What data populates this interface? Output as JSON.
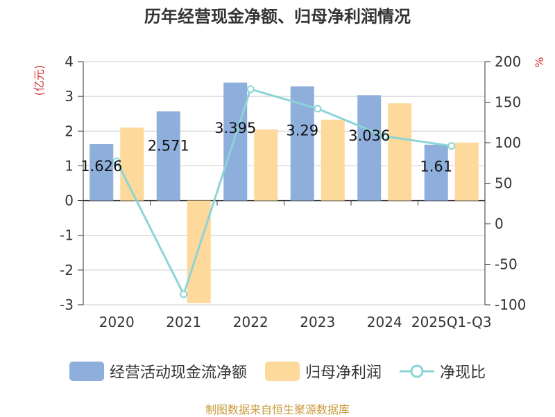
{
  "chart_data": {
    "type": "bar",
    "title": "历年经营现金净额、归母净利润情况",
    "categories": [
      "2020",
      "2021",
      "2022",
      "2023",
      "2024",
      "2025Q1-Q3"
    ],
    "y_left": {
      "unit": "(亿元)",
      "range": [
        -3,
        4
      ],
      "ticks": [
        "4",
        "3",
        "2",
        "1",
        "0",
        "-1",
        "-2",
        "-3"
      ]
    },
    "y_right": {
      "unit": "%",
      "range": [
        -100,
        200
      ],
      "ticks": [
        "200",
        "150",
        "100",
        "50",
        "0",
        "-50",
        "-100"
      ]
    },
    "grid": true,
    "legend_position": "bottom",
    "series": [
      {
        "name": "经营活动现金流净额",
        "type": "bar",
        "axis": "left",
        "color": "#8eaedc",
        "values": [
          1.626,
          2.571,
          3.395,
          3.29,
          3.036,
          1.61
        ],
        "labels": [
          "1.626",
          "2.571",
          "3.395",
          "3.29",
          "3.036",
          "1.61"
        ]
      },
      {
        "name": "归母净利润",
        "type": "bar",
        "axis": "left",
        "color": "#fdd99b",
        "values": [
          2.1,
          -2.95,
          2.05,
          2.33,
          2.8,
          1.67
        ]
      },
      {
        "name": "净现比",
        "type": "line",
        "axis": "right",
        "color": "#8dd4d6",
        "values": [
          77,
          -87,
          166,
          142,
          108,
          96
        ]
      }
    ]
  },
  "source_text": "制图数据来自恒生聚源数据库"
}
